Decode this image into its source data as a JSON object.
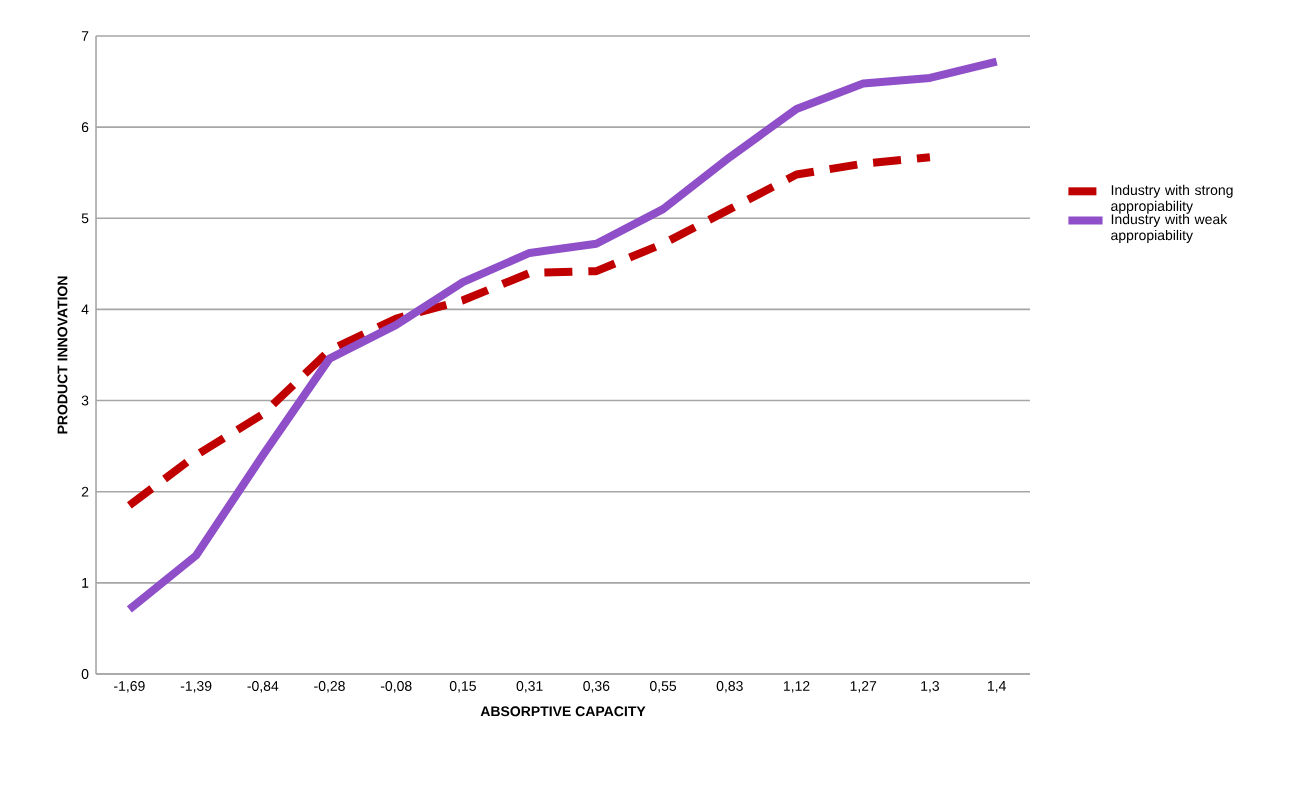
{
  "chart_data": {
    "type": "line",
    "xlabel": "ABSORPTIVE CAPACITY",
    "ylabel": "PRODUCT INNOVATION",
    "categories": [
      "-1,69",
      "-1,39",
      "-0,84",
      "-0,28",
      "-0,08",
      "0,15",
      "0,31",
      "0,36",
      "0,55",
      "0,83",
      "1,12",
      "1,27",
      "1,3",
      "1,4"
    ],
    "series": [
      {
        "name": "Industry with strong appropiability",
        "color": "#c00000",
        "line_style": "dashed",
        "values": [
          1.85,
          2.4,
          2.85,
          3.55,
          3.9,
          4.1,
          4.4,
          4.42,
          4.72,
          5.1,
          5.48,
          5.6,
          5.67,
          null
        ]
      },
      {
        "name": "Industry with weak appropiability",
        "color": "#8e4fc9",
        "line_style": "solid",
        "values": [
          0.71,
          1.3,
          2.4,
          3.46,
          3.83,
          4.3,
          4.62,
          4.72,
          5.1,
          5.67,
          6.2,
          6.48,
          6.54,
          6.72
        ]
      }
    ],
    "ylim": [
      0,
      7
    ],
    "yticks": [
      0,
      1,
      2,
      3,
      4,
      5,
      6,
      7
    ],
    "grid": "y",
    "legend": "right"
  }
}
